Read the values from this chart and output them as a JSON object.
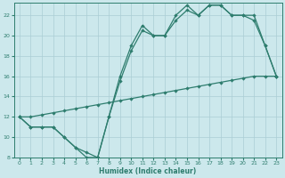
{
  "xlabel": "Humidex (Indice chaleur)",
  "bg_color": "#cce8ec",
  "grid_color": "#aacdd4",
  "line_color": "#2e7d6e",
  "line1_y": [
    12,
    11,
    11,
    11,
    10,
    9,
    8,
    8,
    12,
    16,
    19,
    21,
    20,
    20,
    22,
    23,
    22,
    23,
    23,
    22,
    22,
    22,
    19,
    16
  ],
  "line2_y": [
    12,
    11,
    11,
    11,
    10,
    9,
    8.5,
    8,
    12,
    15.5,
    18.5,
    20.5,
    20,
    20,
    21.5,
    22.5,
    22,
    23,
    23,
    22,
    22,
    21.5,
    19,
    16
  ],
  "line3_y": [
    12,
    12,
    12.2,
    12.4,
    12.6,
    12.8,
    13,
    13.2,
    13.4,
    13.6,
    13.8,
    14,
    14.2,
    14.4,
    14.6,
    14.8,
    15,
    15.2,
    15.4,
    15.6,
    15.8,
    16,
    16,
    16
  ],
  "ylim": [
    8,
    23
  ],
  "xlim": [
    -0.5,
    23.5
  ],
  "yticks": [
    8,
    10,
    12,
    14,
    16,
    18,
    20,
    22
  ],
  "xticks": [
    0,
    1,
    2,
    3,
    4,
    5,
    6,
    7,
    8,
    9,
    10,
    11,
    12,
    13,
    14,
    15,
    16,
    17,
    18,
    19,
    20,
    21,
    22,
    23
  ],
  "markersize": 2.2,
  "lw": 0.9
}
